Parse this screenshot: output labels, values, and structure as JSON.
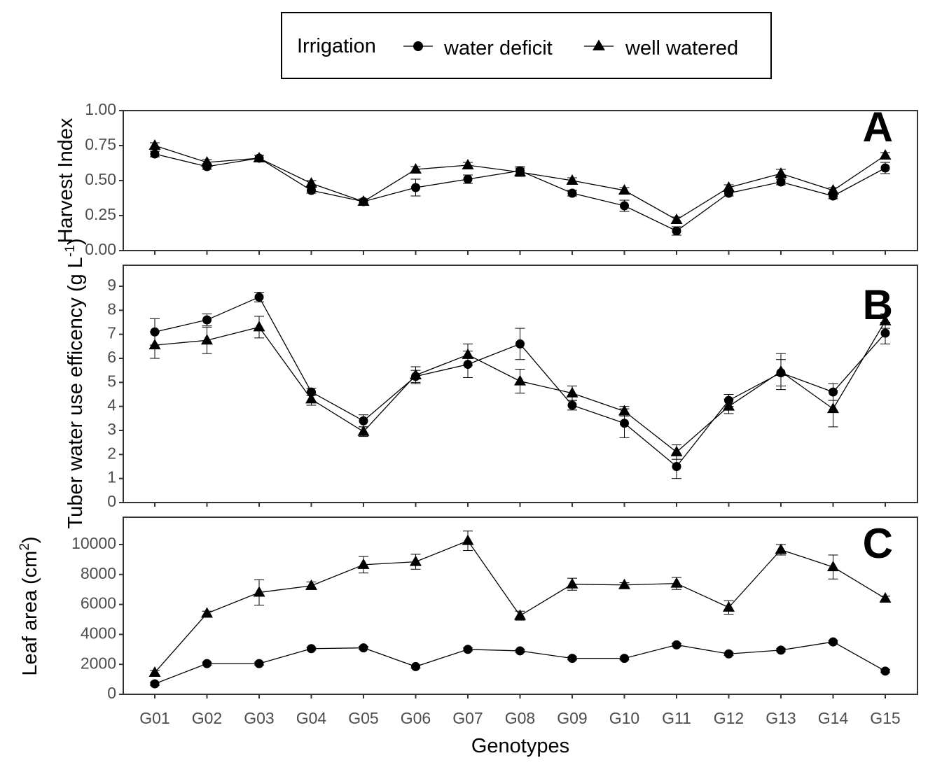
{
  "legend": {
    "title": "Irrigation",
    "entries": [
      "water deficit",
      "well watered"
    ]
  },
  "chart_data": [
    {
      "panel_letter": "A",
      "type": "line",
      "ylabel": "Harvest Index",
      "ylim": [
        0,
        1
      ],
      "yticks": [
        "0.00",
        "0.25",
        "0.50",
        "0.75",
        "1.00"
      ],
      "ytick_values": [
        0,
        0.25,
        0.5,
        0.75,
        1.0
      ],
      "categories": [
        "G01",
        "G02",
        "G03",
        "G04",
        "G05",
        "G06",
        "G07",
        "G08",
        "G09",
        "G10",
        "G11",
        "G12",
        "G13",
        "G14",
        "G15"
      ],
      "series": [
        {
          "name": "water deficit",
          "marker": "circle",
          "values": [
            0.69,
            0.6,
            0.66,
            0.43,
            0.35,
            0.45,
            0.51,
            0.57,
            0.41,
            0.32,
            0.14,
            0.41,
            0.49,
            0.39,
            0.59
          ],
          "err": [
            0.02,
            0.02,
            0.02,
            0.02,
            0.02,
            0.06,
            0.03,
            0.03,
            0.02,
            0.04,
            0.03,
            0.02,
            0.02,
            0.02,
            0.04
          ]
        },
        {
          "name": "well watered",
          "marker": "triangle",
          "values": [
            0.75,
            0.63,
            0.66,
            0.48,
            0.35,
            0.58,
            0.61,
            0.56,
            0.5,
            0.43,
            0.22,
            0.45,
            0.55,
            0.43,
            0.68
          ],
          "err": [
            0.02,
            0.02,
            0.02,
            0.02,
            0.02,
            0.02,
            0.02,
            0.03,
            0.02,
            0.02,
            0.02,
            0.02,
            0.03,
            0.02,
            0.02
          ]
        }
      ]
    },
    {
      "panel_letter": "B",
      "type": "line",
      "ylabel": "Tuber water use efficency (g L",
      "ylabel_sup": "-1",
      "ylabel_end": ")",
      "ylim": [
        0,
        10
      ],
      "yticks": [
        "0",
        "1",
        "2",
        "3",
        "4",
        "5",
        "6",
        "7",
        "8",
        "9"
      ],
      "ytick_values": [
        0,
        1,
        2,
        3,
        4,
        5,
        6,
        7,
        8,
        9
      ],
      "categories": [
        "G01",
        "G02",
        "G03",
        "G04",
        "G05",
        "G06",
        "G07",
        "G08",
        "G09",
        "G10",
        "G11",
        "G12",
        "G13",
        "G14",
        "G15"
      ],
      "series": [
        {
          "name": "water deficit",
          "marker": "circle",
          "values": [
            7.1,
            7.6,
            8.55,
            4.6,
            3.4,
            5.25,
            5.75,
            6.6,
            4.05,
            3.3,
            1.5,
            4.25,
            5.4,
            4.6,
            7.05
          ],
          "err": [
            0.55,
            0.25,
            0.2,
            0.15,
            0.25,
            0.25,
            0.55,
            0.65,
            0.2,
            0.6,
            0.5,
            0.25,
            0.55,
            0.35,
            0.45
          ]
        },
        {
          "name": "well watered",
          "marker": "triangle",
          "values": [
            6.55,
            6.75,
            7.3,
            4.3,
            2.95,
            5.3,
            6.15,
            5.05,
            4.55,
            3.8,
            2.1,
            4.0,
            5.45,
            3.9,
            7.55
          ],
          "err": [
            0.55,
            0.55,
            0.45,
            0.25,
            0.2,
            0.35,
            0.45,
            0.5,
            0.3,
            0.2,
            0.3,
            0.3,
            0.75,
            0.75,
            0.3
          ]
        }
      ]
    },
    {
      "panel_letter": "C",
      "type": "line",
      "ylabel": "Leaf area (cm",
      "ylabel_sup": "2",
      "ylabel_end": ")",
      "xlabel": "Genotypes",
      "ylim": [
        0,
        11000
      ],
      "yticks": [
        "0",
        "2000",
        "4000",
        "6000",
        "8000",
        "10000"
      ],
      "ytick_values": [
        0,
        2000,
        4000,
        6000,
        8000,
        10000
      ],
      "categories": [
        "G01",
        "G02",
        "G03",
        "G04",
        "G05",
        "G06",
        "G07",
        "G08",
        "G09",
        "G10",
        "G11",
        "G12",
        "G13",
        "G14",
        "G15"
      ],
      "series": [
        {
          "name": "water deficit",
          "marker": "circle",
          "values": [
            700,
            2050,
            2050,
            3050,
            3100,
            1850,
            3000,
            2900,
            2400,
            2400,
            3300,
            2700,
            2950,
            3500,
            1550
          ],
          "err": [
            100,
            100,
            100,
            100,
            100,
            100,
            100,
            100,
            100,
            100,
            100,
            100,
            100,
            100,
            100
          ]
        },
        {
          "name": "well watered",
          "marker": "triangle",
          "values": [
            1450,
            5400,
            6800,
            7250,
            8650,
            8850,
            10250,
            5250,
            7350,
            7300,
            7400,
            5800,
            9650,
            8500,
            6400
          ],
          "err": [
            150,
            150,
            850,
            250,
            550,
            500,
            650,
            300,
            400,
            150,
            400,
            450,
            350,
            800,
            150
          ]
        }
      ]
    }
  ]
}
